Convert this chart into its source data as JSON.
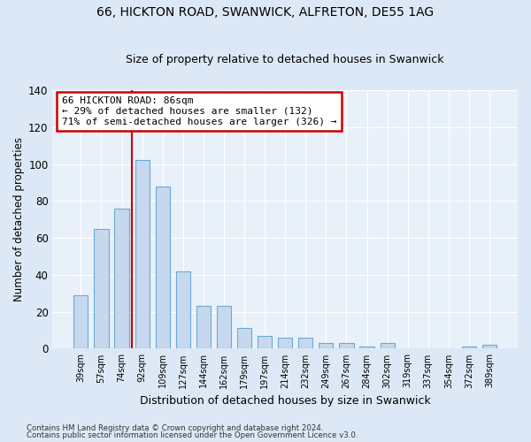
{
  "title1": "66, HICKTON ROAD, SWANWICK, ALFRETON, DE55 1AG",
  "title2": "Size of property relative to detached houses in Swanwick",
  "xlabel": "Distribution of detached houses by size in Swanwick",
  "ylabel": "Number of detached properties",
  "categories": [
    "39sqm",
    "57sqm",
    "74sqm",
    "92sqm",
    "109sqm",
    "127sqm",
    "144sqm",
    "162sqm",
    "179sqm",
    "197sqm",
    "214sqm",
    "232sqm",
    "249sqm",
    "267sqm",
    "284sqm",
    "302sqm",
    "319sqm",
    "337sqm",
    "354sqm",
    "372sqm",
    "389sqm"
  ],
  "values": [
    29,
    65,
    76,
    102,
    88,
    42,
    23,
    23,
    11,
    7,
    6,
    6,
    3,
    3,
    1,
    3,
    0,
    0,
    0,
    1,
    2
  ],
  "bar_color": "#c5d8ee",
  "bar_edge_color": "#6aaad4",
  "vline_x": 2.5,
  "vline_color": "#cc0000",
  "annotation_line1": "66 HICKTON ROAD: 86sqm",
  "annotation_line2": "← 29% of detached houses are smaller (132)",
  "annotation_line3": "71% of semi-detached houses are larger (326) →",
  "annotation_box_color": "#ffffff",
  "annotation_box_edge": "#cc0000",
  "ylim": [
    0,
    140
  ],
  "yticks": [
    0,
    20,
    40,
    60,
    80,
    100,
    120,
    140
  ],
  "footer1": "Contains HM Land Registry data © Crown copyright and database right 2024.",
  "footer2": "Contains public sector information licensed under the Open Government Licence v3.0.",
  "bg_color": "#dce8f5",
  "plot_bg": "#e8f0fa",
  "bar_width": 0.7,
  "title1_fontsize": 10,
  "title2_fontsize": 9,
  "ylabel_fontsize": 8.5,
  "xlabel_fontsize": 9
}
